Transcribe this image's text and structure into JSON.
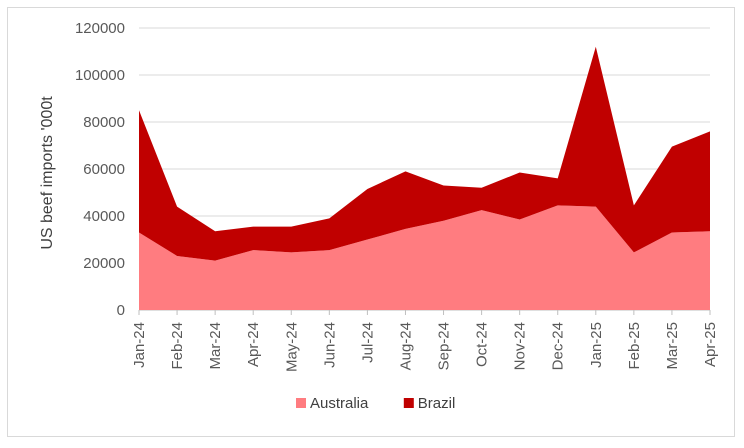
{
  "chart_data": {
    "type": "area",
    "stacked": true,
    "ylabel": "US beef imports '000t",
    "ylim": [
      0,
      120000
    ],
    "yticks": [
      "0",
      "20000",
      "40000",
      "60000",
      "80000",
      "100000",
      "120000"
    ],
    "categories": [
      "Jan-24",
      "Feb-24",
      "Mar-24",
      "Apr-24",
      "May-24",
      "Jun-24",
      "Jul-24",
      "Aug-24",
      "Sep-24",
      "Oct-24",
      "Nov-24",
      "Dec-24",
      "Jan-25",
      "Feb-25",
      "Mar-25",
      "Apr-25"
    ],
    "series": [
      {
        "name": "Australia",
        "color": "#ff7c80",
        "values": [
          33000,
          23000,
          21000,
          25500,
          24500,
          25500,
          30000,
          34500,
          38000,
          42500,
          38500,
          44500,
          44000,
          24500,
          33000,
          33500
        ]
      },
      {
        "name": "Brazil",
        "color": "#c00000",
        "values": [
          52000,
          21000,
          12500,
          10000,
          11000,
          13500,
          21500,
          24500,
          15000,
          9500,
          20000,
          11500,
          68000,
          20000,
          36500,
          42500
        ]
      }
    ],
    "grid": true,
    "legend": "bottom"
  }
}
